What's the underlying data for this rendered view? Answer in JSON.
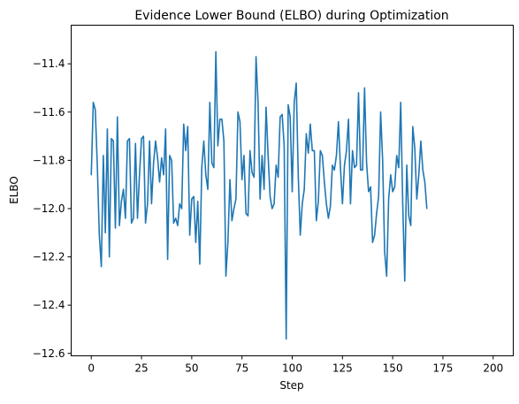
{
  "chart_data": {
    "type": "line",
    "title": "Evidence Lower Bound (ELBO) during Optimization",
    "xlabel": "Step",
    "ylabel": "ELBO",
    "xlim": [
      -10,
      210
    ],
    "ylim": [
      -12.61,
      -11.24
    ],
    "xticks": [
      0,
      25,
      50,
      75,
      100,
      125,
      150,
      175,
      200
    ],
    "yticks": [
      -12.6,
      -12.4,
      -12.2,
      -12.0,
      -11.8,
      -11.6,
      -11.4
    ],
    "ytick_labels": [
      "−12.6",
      "−12.4",
      "−12.2",
      "−12.0",
      "−11.8",
      "−11.6",
      "−11.4"
    ],
    "grid": false,
    "series": [
      {
        "color": "#1f77b4",
        "x_start": 0,
        "x_step": 1,
        "values": [
          -11.86,
          -11.56,
          -11.59,
          -11.82,
          -12.11,
          -12.24,
          -11.78,
          -12.1,
          -11.67,
          -12.2,
          -11.71,
          -11.72,
          -12.08,
          -11.62,
          -12.07,
          -11.97,
          -11.92,
          -12.04,
          -11.72,
          -11.71,
          -12.06,
          -12.04,
          -11.73,
          -12.04,
          -11.86,
          -11.71,
          -11.7,
          -12.06,
          -11.98,
          -11.72,
          -11.98,
          -11.81,
          -11.72,
          -11.79,
          -11.89,
          -11.79,
          -11.86,
          -11.67,
          -12.21,
          -11.78,
          -11.8,
          -12.06,
          -12.04,
          -12.07,
          -11.98,
          -12.0,
          -11.65,
          -11.76,
          -11.66,
          -12.11,
          -11.96,
          -11.95,
          -12.14,
          -11.97,
          -12.23,
          -11.83,
          -11.72,
          -11.86,
          -11.92,
          -11.56,
          -11.81,
          -11.83,
          -11.35,
          -11.74,
          -11.63,
          -11.63,
          -11.72,
          -12.28,
          -12.14,
          -11.88,
          -12.05,
          -12.0,
          -11.96,
          -11.6,
          -11.64,
          -11.88,
          -11.78,
          -12.02,
          -12.03,
          -11.76,
          -11.85,
          -11.87,
          -11.37,
          -11.56,
          -11.96,
          -11.78,
          -11.92,
          -11.58,
          -11.78,
          -11.95,
          -12.0,
          -11.98,
          -11.82,
          -11.87,
          -11.62,
          -11.61,
          -11.74,
          -12.54,
          -11.57,
          -11.62,
          -11.93,
          -11.56,
          -11.48,
          -11.86,
          -12.11,
          -11.98,
          -11.92,
          -11.69,
          -11.77,
          -11.65,
          -11.76,
          -11.76,
          -12.05,
          -11.97,
          -11.76,
          -11.78,
          -11.89,
          -11.98,
          -12.04,
          -11.99,
          -11.82,
          -11.84,
          -11.78,
          -11.64,
          -11.83,
          -11.98,
          -11.82,
          -11.76,
          -11.63,
          -11.98
        ]
      }
    ],
    "series_tail": [
      -11.76,
      -11.83,
      -11.82,
      -11.52,
      -11.84,
      -11.84,
      -11.5,
      -11.81,
      -11.93,
      -11.91,
      -12.14,
      -12.11,
      -12.02,
      -11.95,
      -11.6,
      -11.8,
      -12.18,
      -12.28,
      -11.96,
      -11.86,
      -11.93,
      -11.91,
      -11.78,
      -11.83,
      -11.56,
      -11.98,
      -12.3,
      -11.82,
      -12.03,
      -12.07,
      -11.66,
      -11.75,
      -11.96,
      -11.86,
      -11.72,
      -11.84,
      -11.89,
      -12.0
    ]
  }
}
